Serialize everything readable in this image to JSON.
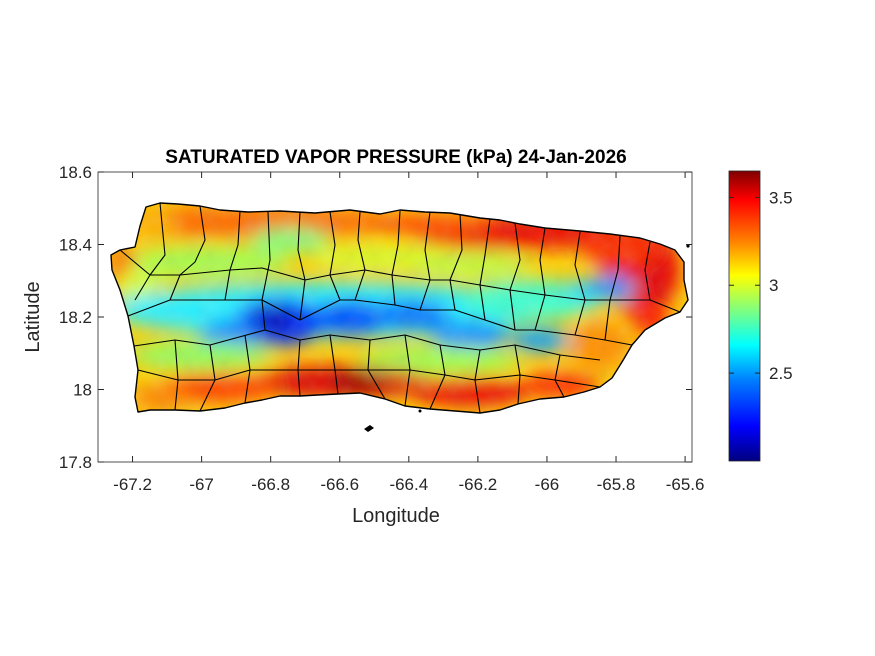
{
  "map": {
    "title": "SATURATED VAPOR PRESSURE (kPa) 24-Jan-2026",
    "xlabel": "Longitude",
    "ylabel": "Latitude",
    "xlim": [
      -67.3,
      -65.58
    ],
    "ylim": [
      17.8,
      18.6
    ],
    "x_ticks": [
      "-67.2",
      "-67",
      "-66.8",
      "-66.6",
      "-66.4",
      "-66.2",
      "-66",
      "-65.8",
      "-65.6"
    ],
    "x_tick_values": [
      -67.2,
      -67.0,
      -66.8,
      -66.6,
      -66.4,
      -66.2,
      -66.0,
      -65.8,
      -65.6
    ],
    "y_ticks": [
      "18.6",
      "18.4",
      "18.2",
      "18",
      "17.8"
    ],
    "y_tick_values": [
      18.6,
      18.4,
      18.2,
      18.0,
      17.8
    ],
    "variable_units": "kPa",
    "region": "Puerto Rico",
    "colormap": "jet",
    "colorbar": {
      "min": 2.0,
      "max": 3.65,
      "ticks": [
        "3.5",
        "3",
        "2.5"
      ],
      "tick_values": [
        3.5,
        3.0,
        2.5
      ],
      "colors": [
        "#00007f",
        "#0000ff",
        "#007fff",
        "#00ffff",
        "#7fff7f",
        "#ffff00",
        "#ff7f00",
        "#ff0000",
        "#7f0000"
      ]
    },
    "pattern_description": "High values (~3.4-3.6 kPa, red) along the south coast and the north-east coast; low values (~2.1-2.4 kPa, blue) over the central mountain ridge (Cordillera Central); intermediate green-yellow values elsewhere."
  }
}
